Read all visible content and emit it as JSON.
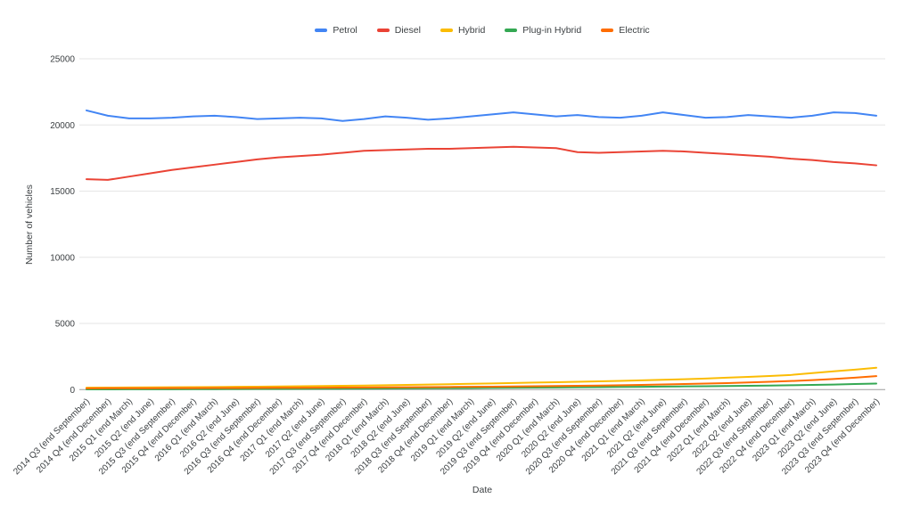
{
  "chart_data": {
    "type": "line",
    "title": "",
    "xlabel": "Date",
    "ylabel": "Number of vehicles",
    "ylim": [
      0,
      25000
    ],
    "yticks": [
      0,
      5000,
      10000,
      15000,
      20000,
      25000
    ],
    "grid": true,
    "legend_position": "top",
    "categories": [
      "2014 Q3 (end September)",
      "2014 Q4 (end December)",
      "2015 Q1 (end March)",
      "2015 Q2 (end June)",
      "2015 Q3 (end September)",
      "2015 Q4 (end December)",
      "2016 Q1 (end March)",
      "2016 Q2 (end June)",
      "2016 Q3 (end September)",
      "2016 Q4 (end December)",
      "2017 Q1 (end March)",
      "2017 Q2 (end June)",
      "2017 Q3 (end September)",
      "2017 Q4 (end December)",
      "2018 Q1 (end March)",
      "2018 Q2 (end June)",
      "2018 Q3 (end September)",
      "2018 Q4 (end December)",
      "2019 Q1 (end March)",
      "2019 Q2 (end June)",
      "2019 Q3 (end September)",
      "2019 Q4 (end December)",
      "2020 Q1 (end March)",
      "2020 Q2 (end June)",
      "2020 Q3 (end September)",
      "2020 Q4 (end December)",
      "2021 Q1 (end March)",
      "2021 Q2 (end June)",
      "2021 Q3 (end September)",
      "2021 Q4 (end December)",
      "2022 Q1 (end March)",
      "2022 Q2 (end June)",
      "2022 Q3 (end September)",
      "2022 Q4 (end December)",
      "2023 Q1 (end March)",
      "2023 Q2 (end June)",
      "2023 Q3 (end September)",
      "2023 Q4 (end December)"
    ],
    "series": [
      {
        "name": "Petrol",
        "color": "#4285F4",
        "values": [
          21100,
          20700,
          20500,
          20500,
          20550,
          20650,
          20700,
          20600,
          20450,
          20500,
          20550,
          20500,
          20300,
          20450,
          20650,
          20550,
          20400,
          20500,
          20650,
          20800,
          20950,
          20800,
          20650,
          20750,
          20600,
          20550,
          20700,
          20950,
          20750,
          20550,
          20600,
          20750,
          20650,
          20550,
          20700,
          20950,
          20900,
          20700
        ]
      },
      {
        "name": "Diesel",
        "color": "#EA4335",
        "values": [
          15900,
          15850,
          16100,
          16350,
          16600,
          16800,
          17000,
          17200,
          17400,
          17550,
          17650,
          17750,
          17900,
          18050,
          18100,
          18150,
          18200,
          18200,
          18250,
          18300,
          18350,
          18300,
          18250,
          17950,
          17900,
          17950,
          18000,
          18050,
          18000,
          17900,
          17800,
          17700,
          17600,
          17450,
          17350,
          17200,
          17100,
          16950
        ]
      },
      {
        "name": "Hybrid",
        "color": "#FBBC04",
        "values": [
          150,
          155,
          160,
          170,
          180,
          190,
          200,
          210,
          225,
          240,
          255,
          270,
          290,
          310,
          330,
          355,
          380,
          410,
          440,
          470,
          500,
          530,
          560,
          590,
          625,
          660,
          700,
          745,
          790,
          840,
          900,
          960,
          1030,
          1110,
          1250,
          1380,
          1510,
          1650
        ]
      },
      {
        "name": "Plug-in Hybrid",
        "color": "#34A853",
        "values": [
          20,
          22,
          25,
          28,
          32,
          36,
          40,
          45,
          50,
          56,
          62,
          68,
          75,
          82,
          90,
          98,
          106,
          115,
          124,
          134,
          144,
          155,
          166,
          178,
          190,
          203,
          216,
          230,
          245,
          260,
          276,
          293,
          310,
          330,
          355,
          385,
          420,
          460
        ]
      },
      {
        "name": "Electric",
        "color": "#FF6D01",
        "values": [
          100,
          102,
          105,
          108,
          112,
          116,
          120,
          125,
          130,
          136,
          142,
          148,
          155,
          162,
          170,
          180,
          190,
          200,
          212,
          225,
          240,
          255,
          270,
          290,
          310,
          335,
          360,
          390,
          420,
          455,
          495,
          540,
          590,
          650,
          720,
          800,
          900,
          1020
        ]
      }
    ]
  },
  "colors": {
    "grid_line": "#e6e6e6",
    "axis_line": "#9e9e9e",
    "tick_text": "#3c4043",
    "title_text": "#3c4043"
  }
}
